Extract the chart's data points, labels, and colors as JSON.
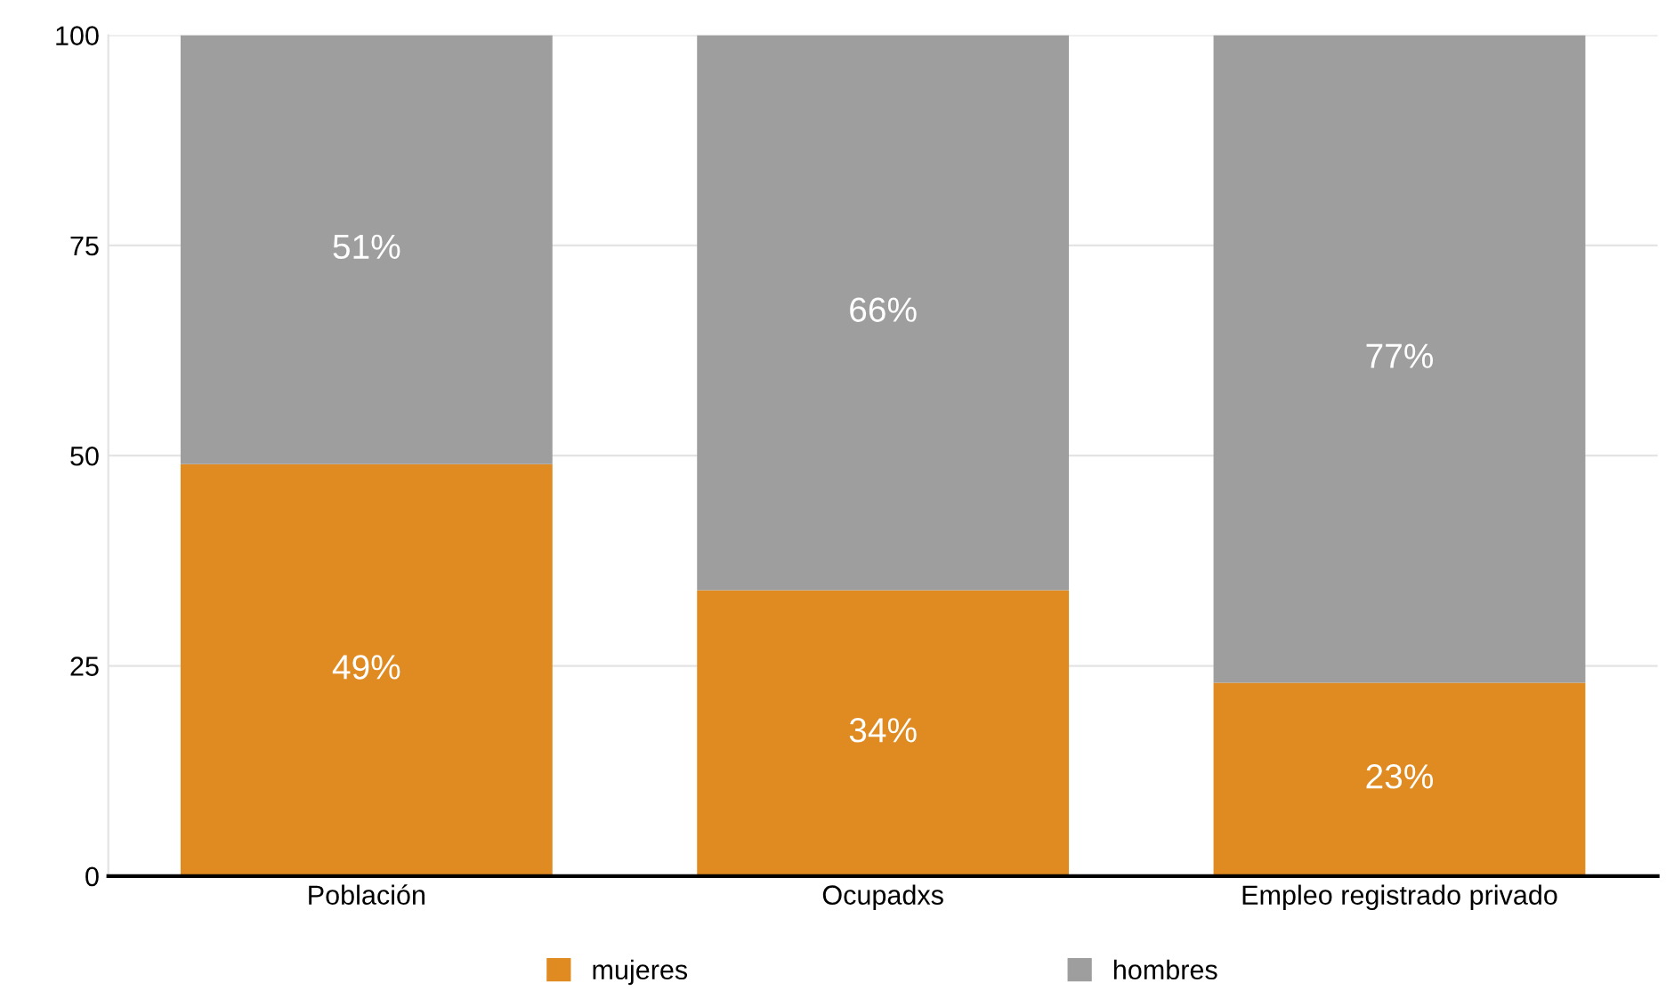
{
  "chart_data": {
    "type": "bar",
    "stacked": true,
    "categories": [
      "Población",
      "Ocupadxs",
      "Empleo registrado privado"
    ],
    "series": [
      {
        "name": "mujeres",
        "color": "#e08b22",
        "values": [
          49,
          34,
          23
        ],
        "value_labels": [
          "49%",
          "34%",
          "23%"
        ]
      },
      {
        "name": "hombres",
        "color": "#9e9e9e",
        "values": [
          51,
          66,
          77
        ],
        "value_labels": [
          "51%",
          "66%",
          "77%"
        ]
      }
    ],
    "ylim": [
      0,
      100
    ],
    "yticks": [
      0,
      25,
      50,
      75,
      100
    ],
    "grid": "y",
    "legend": "bottom"
  }
}
